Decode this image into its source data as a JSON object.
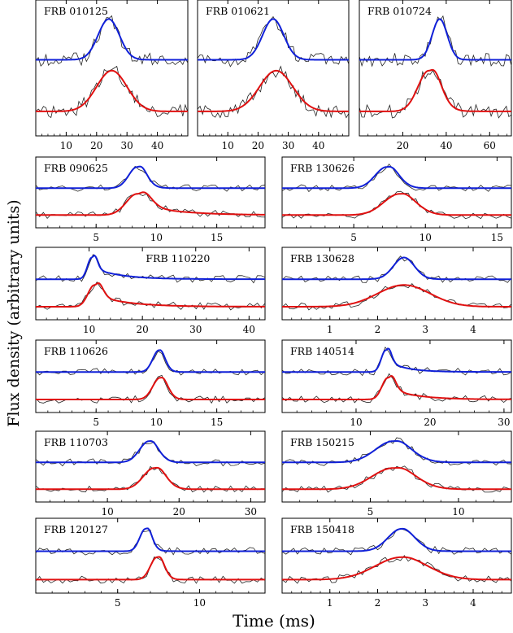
{
  "figure": {
    "ylabel": "Flux density (arbitrary units)",
    "xlabel": "Time (ms)"
  },
  "chart_data": [
    {
      "type": "line",
      "title": "FRB 010125",
      "title_pos": "top-left",
      "xlim": [
        0,
        50
      ],
      "xticks": [
        10,
        20,
        30,
        40
      ],
      "xticklabels": [
        "10",
        "20",
        "30",
        "40"
      ],
      "top": {
        "center": 24,
        "width": 3.5,
        "tail": 0
      },
      "bottom": {
        "center": 25,
        "width": 5,
        "tail": 0
      }
    },
    {
      "type": "line",
      "title": "FRB 010621",
      "title_pos": "top-left",
      "xlim": [
        0,
        50
      ],
      "xticks": [
        10,
        20,
        30,
        40
      ],
      "xticklabels": [
        "10",
        "20",
        "30",
        "40"
      ],
      "top": {
        "center": 25,
        "width": 3.5,
        "tail": 0
      },
      "bottom": {
        "center": 26,
        "width": 5.5,
        "tail": 0
      }
    },
    {
      "type": "line",
      "title": "FRB 010724",
      "title_pos": "top-left",
      "xlim": [
        0,
        70
      ],
      "xticks": [
        20,
        40,
        60
      ],
      "xticklabels": [
        "20",
        "40",
        "60"
      ],
      "top": {
        "center": 37,
        "width": 3.5,
        "tail": 0
      },
      "bottom": {
        "center": 32,
        "width": 5,
        "tail": 4
      }
    },
    {
      "type": "line",
      "title": "FRB 090625",
      "title_pos": "top-left",
      "xlim": [
        0,
        19
      ],
      "xticks": [
        5,
        10,
        15
      ],
      "xticklabels": [
        "5",
        "10",
        "15"
      ],
      "top": {
        "center": 8.4,
        "width": 0.7,
        "tail": 0.6
      },
      "bottom": {
        "center": 8.4,
        "width": 0.9,
        "tail": 3
      }
    },
    {
      "type": "line",
      "title": "FRB 130626",
      "title_pos": "top-left",
      "xlim": [
        0,
        16
      ],
      "xticks": [
        5,
        10,
        15
      ],
      "xticklabels": [
        "5",
        "10",
        "15"
      ],
      "top": {
        "center": 7.3,
        "width": 0.8,
        "tail": 0.4
      },
      "bottom": {
        "center": 8.2,
        "width": 1.1,
        "tail": 0.4
      }
    },
    {
      "type": "line",
      "title": "FRB 110220",
      "title_pos": "top-center",
      "xlim": [
        0,
        43
      ],
      "xticks": [
        10,
        20,
        30,
        40
      ],
      "xticklabels": [
        "10",
        "20",
        "30",
        "40"
      ],
      "top": {
        "center": 10.5,
        "width": 0.8,
        "tail": 5
      },
      "bottom": {
        "center": 11,
        "width": 1.2,
        "tail": 6
      }
    },
    {
      "type": "line",
      "title": "FRB 130628",
      "title_pos": "top-left",
      "xlim": [
        0,
        4.8
      ],
      "xticks": [
        1,
        2,
        3,
        4
      ],
      "xticklabels": [
        "1",
        "2",
        "3",
        "4"
      ],
      "top": {
        "center": 2.55,
        "width": 0.22,
        "tail": 0
      },
      "bottom": {
        "center": 2.55,
        "width": 0.55,
        "tail": 0
      }
    },
    {
      "type": "line",
      "title": "FRB 110626",
      "title_pos": "top-left",
      "xlim": [
        0,
        19
      ],
      "xticks": [
        5,
        10,
        15
      ],
      "xticklabels": [
        "5",
        "10",
        "15"
      ],
      "top": {
        "center": 10.2,
        "width": 0.5,
        "tail": 0.2
      },
      "bottom": {
        "center": 10.3,
        "width": 0.6,
        "tail": 0.3
      }
    },
    {
      "type": "line",
      "title": "FRB 140514",
      "title_pos": "top-left",
      "xlim": [
        0,
        31
      ],
      "xticks": [
        10,
        20,
        30
      ],
      "xticklabels": [
        "10",
        "20",
        "30"
      ],
      "top": {
        "center": 14,
        "width": 0.6,
        "tail": 2.5
      },
      "bottom": {
        "center": 14.3,
        "width": 0.8,
        "tail": 3.5
      }
    },
    {
      "type": "line",
      "title": "FRB 110703",
      "title_pos": "top-left",
      "xlim": [
        0,
        32
      ],
      "xticks": [
        10,
        20,
        30
      ],
      "xticklabels": [
        "10",
        "20",
        "30"
      ],
      "top": {
        "center": 15.8,
        "width": 1.3,
        "tail": 0.5
      },
      "bottom": {
        "center": 16.5,
        "width": 1.5,
        "tail": 1
      }
    },
    {
      "type": "line",
      "title": "FRB 150215",
      "title_pos": "top-left",
      "xlim": [
        0,
        13
      ],
      "xticks": [
        5,
        10
      ],
      "xticklabels": [
        "5",
        "10"
      ],
      "top": {
        "center": 6.3,
        "width": 1,
        "tail": 0.4
      },
      "bottom": {
        "center": 6.3,
        "width": 1.2,
        "tail": 0.6
      }
    },
    {
      "type": "line",
      "title": "FRB 120127",
      "title_pos": "top-left",
      "xlim": [
        0,
        14
      ],
      "xticks": [
        5,
        10
      ],
      "xticklabels": [
        "5",
        "10"
      ],
      "top": {
        "center": 6.7,
        "width": 0.35,
        "tail": 0.3
      },
      "bottom": {
        "center": 7.4,
        "width": 0.4,
        "tail": 0.3
      }
    },
    {
      "type": "line",
      "title": "FRB 150418",
      "title_pos": "top-left",
      "xlim": [
        0,
        4.8
      ],
      "xticks": [
        1,
        2,
        3,
        4
      ],
      "xticklabels": [
        "1",
        "2",
        "3",
        "4"
      ],
      "top": {
        "center": 2.5,
        "width": 0.28,
        "tail": 0.05
      },
      "bottom": {
        "center": 2.5,
        "width": 0.55,
        "tail": 0.1
      }
    }
  ]
}
